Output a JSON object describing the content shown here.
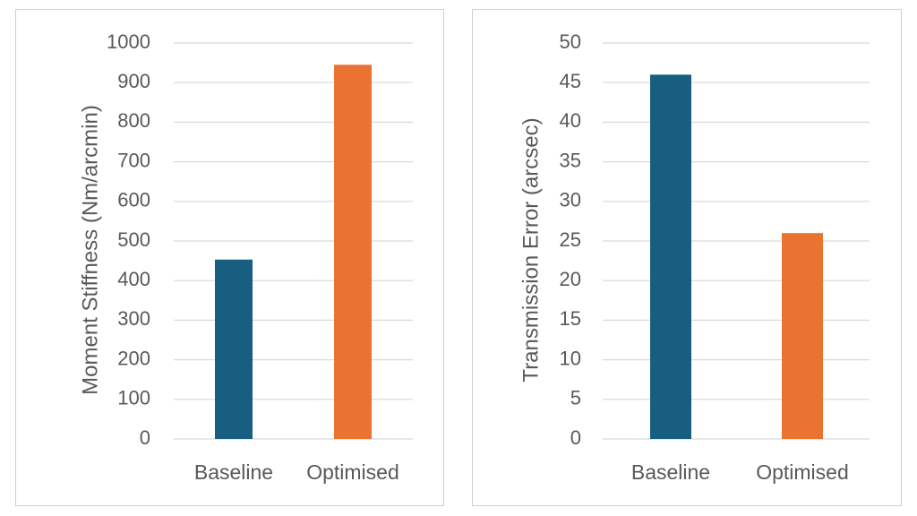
{
  "chart_data": [
    {
      "type": "bar",
      "title": "",
      "xlabel": "",
      "ylabel": "Moment Stiffness (Nm/arcmin)",
      "categories": [
        "Baseline",
        "Optimised"
      ],
      "values": [
        453,
        945
      ],
      "bar_colors": [
        "#175e80",
        "#ea7331"
      ],
      "ylim": [
        0,
        1000
      ],
      "yticks": [
        "0",
        "100",
        "200",
        "300",
        "400",
        "500",
        "600",
        "700",
        "800",
        "900",
        "1000"
      ],
      "grid": true,
      "legend": "none"
    },
    {
      "type": "bar",
      "title": "",
      "xlabel": "",
      "ylabel": "Transmission Error (arcsec)",
      "categories": [
        "Baseline",
        "Optimised"
      ],
      "values": [
        46,
        26
      ],
      "bar_colors": [
        "#175e80",
        "#ea7331"
      ],
      "ylim": [
        0,
        50
      ],
      "yticks": [
        "0",
        "5",
        "10",
        "15",
        "20",
        "25",
        "30",
        "35",
        "40",
        "45",
        "50"
      ],
      "grid": true,
      "legend": "none"
    }
  ]
}
